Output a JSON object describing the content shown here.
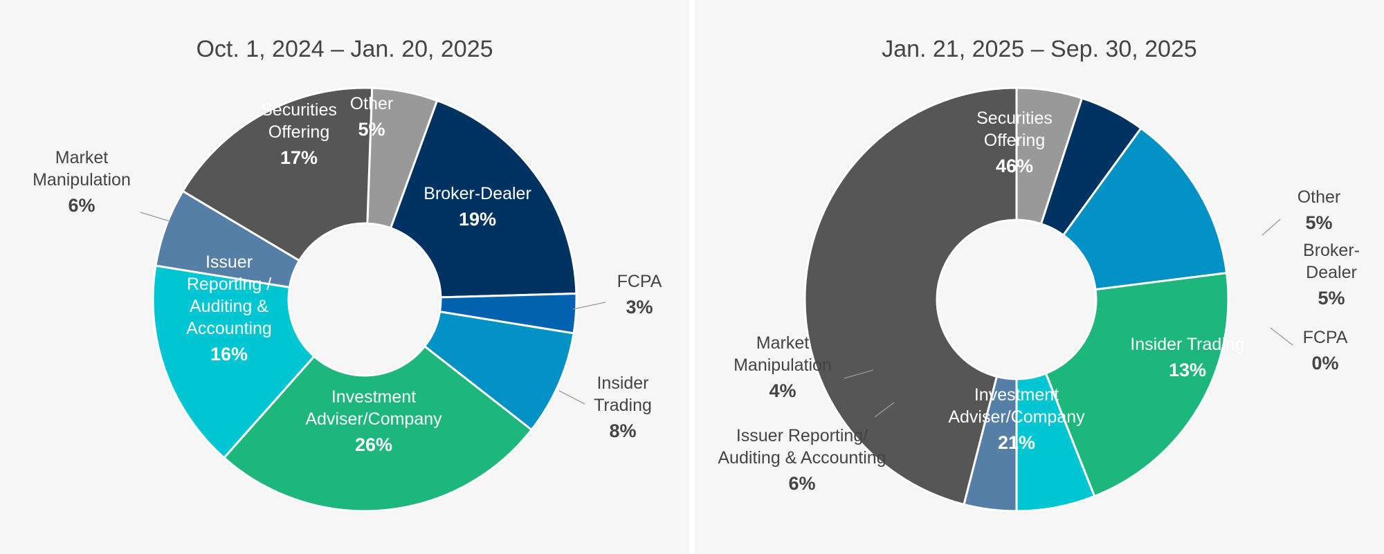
{
  "chart_data": [
    {
      "type": "pie",
      "title": "Oct. 1, 2024 – Jan. 20, 2025",
      "slices": [
        {
          "name": "Other",
          "display": [
            "Other"
          ],
          "value": 5,
          "label": "5%",
          "color": "#999999",
          "text_color": "#ffffff",
          "inside": true
        },
        {
          "name": "Broker-Dealer",
          "display": [
            "Broker-Dealer"
          ],
          "value": 19,
          "label": "19%",
          "color": "#003361",
          "text_color": "#ffffff",
          "inside": true
        },
        {
          "name": "FCPA",
          "display": [
            "FCPA"
          ],
          "value": 3,
          "label": "3%",
          "color": "#0262b0",
          "text_color": "#444444",
          "inside": false
        },
        {
          "name": "Insider Trading",
          "display": [
            "Insider",
            "Trading"
          ],
          "value": 8,
          "label": "8%",
          "color": "#0191c4",
          "text_color": "#444444",
          "inside": false
        },
        {
          "name": "Investment Adviser/Company",
          "display": [
            "Investment",
            "Adviser/Company"
          ],
          "value": 26,
          "label": "26%",
          "color": "#1db67c",
          "text_color": "#ffffff",
          "inside": true
        },
        {
          "name": "Issuer Reporting / Auditing & Accounting",
          "display": [
            "Issuer",
            "Reporting /",
            "Auditing &",
            "Accounting"
          ],
          "value": 16,
          "label": "16%",
          "color": "#00c6d4",
          "text_color": "#ffffff",
          "inside": true
        },
        {
          "name": "Market Manipulation",
          "display": [
            "Market",
            "Manipulation"
          ],
          "value": 6,
          "label": "6%",
          "color": "#567fa7",
          "text_color": "#444444",
          "inside": false
        },
        {
          "name": "Securities Offering",
          "display": [
            "Securities",
            "Offering"
          ],
          "value": 17,
          "label": "17%",
          "color": "#575657",
          "text_color": "#ffffff",
          "inside": true
        }
      ]
    },
    {
      "type": "pie",
      "title": "Jan. 21, 2025 – Sep. 30, 2025",
      "slices": [
        {
          "name": "Other",
          "display": [
            "Other"
          ],
          "value": 5,
          "label": "5%",
          "color": "#999999",
          "text_color": "#444444",
          "inside": false
        },
        {
          "name": "Broker-Dealer",
          "display": [
            "Broker-",
            "Dealer"
          ],
          "value": 5,
          "label": "5%",
          "color": "#003361",
          "text_color": "#444444",
          "inside": false
        },
        {
          "name": "FCPA",
          "display": [
            "FCPA"
          ],
          "value": 0,
          "label": "0%",
          "color": "#0262b0",
          "text_color": "#444444",
          "inside": false
        },
        {
          "name": "Insider Trading",
          "display": [
            "Insider Trading"
          ],
          "value": 13,
          "label": "13%",
          "color": "#0191c4",
          "text_color": "#ffffff",
          "inside": true
        },
        {
          "name": "Investment Adviser/Company",
          "display": [
            "Investment",
            "Adviser/Company"
          ],
          "value": 21,
          "label": "21%",
          "color": "#1db67c",
          "text_color": "#ffffff",
          "inside": true
        },
        {
          "name": "Issuer Reporting/ Auditing & Accounting",
          "display": [
            "Issuer Reporting/",
            "Auditing & Accounting"
          ],
          "value": 6,
          "label": "6%",
          "color": "#00c6d4",
          "text_color": "#444444",
          "inside": false
        },
        {
          "name": "Market Manipulation",
          "display": [
            "Market",
            "Manipulation"
          ],
          "value": 4,
          "label": "4%",
          "color": "#567fa7",
          "text_color": "#444444",
          "inside": false
        },
        {
          "name": "Securities Offering",
          "display": [
            "Securities",
            "Offering"
          ],
          "value": 46,
          "label": "46%",
          "color": "#575657",
          "text_color": "#ffffff",
          "inside": true
        }
      ]
    }
  ]
}
